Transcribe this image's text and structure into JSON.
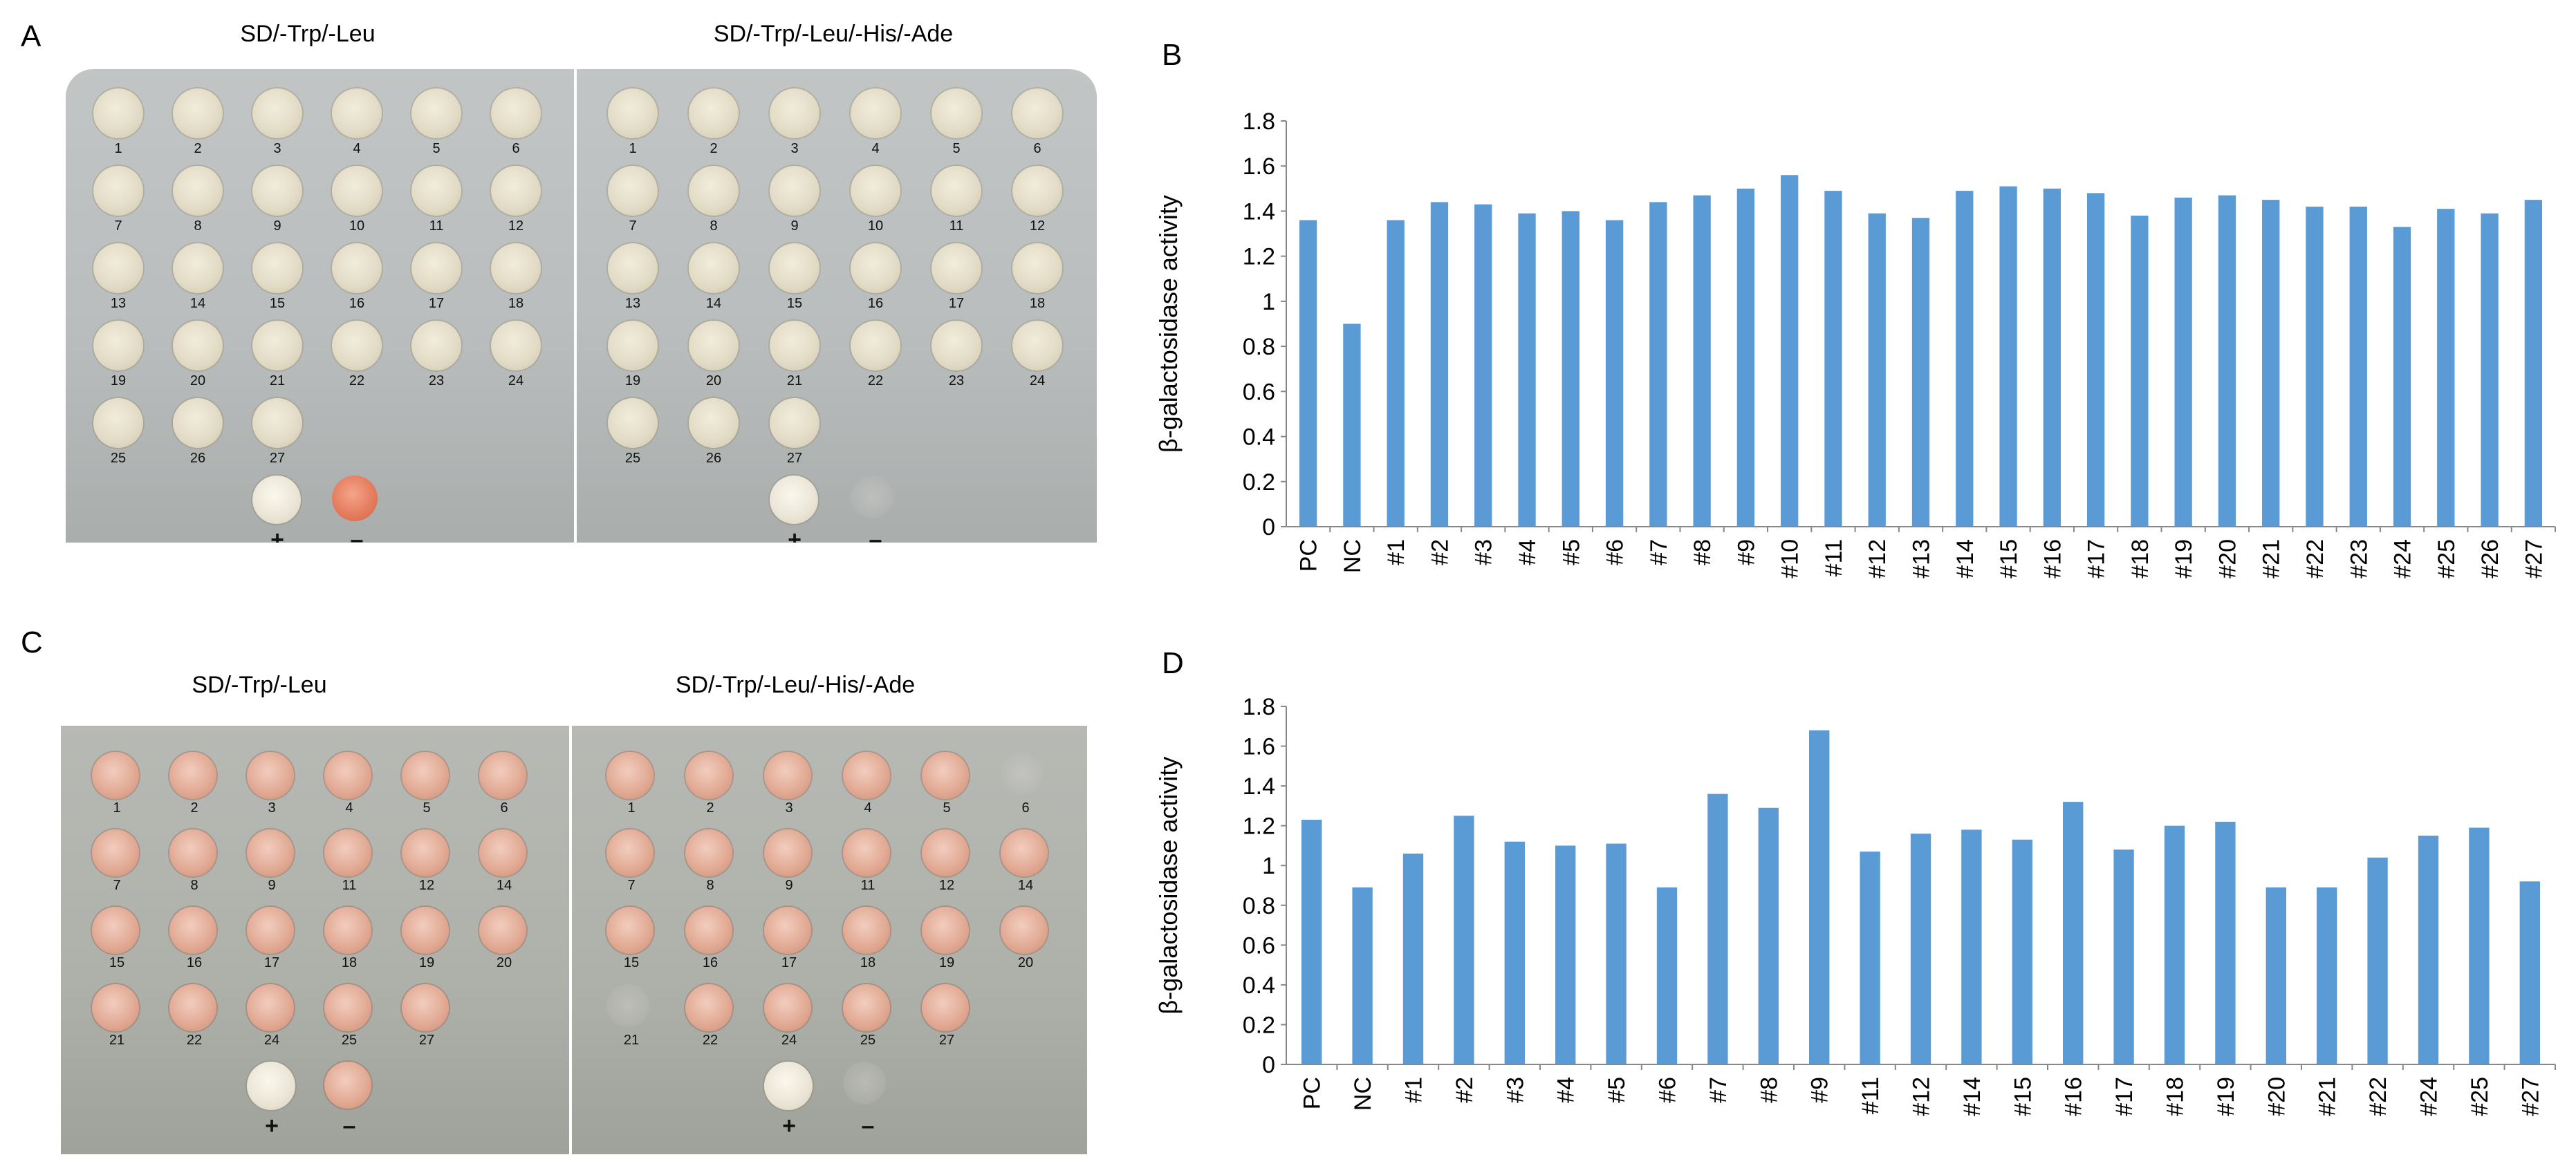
{
  "panels": {
    "A": {
      "letter": "A",
      "left_title": "SD/-Trp/-Leu",
      "right_title": "SD/-Trp/-Leu/-His/-Ade",
      "rows": [
        [
          "1",
          "2",
          "3",
          "4",
          "5",
          "6"
        ],
        [
          "7",
          "8",
          "9",
          "10",
          "11",
          "12"
        ],
        [
          "13",
          "14",
          "15",
          "16",
          "17",
          "18"
        ],
        [
          "19",
          "20",
          "21",
          "22",
          "23",
          "24"
        ],
        [
          "25",
          "26",
          "27"
        ]
      ],
      "pos_label": "+",
      "neg_label": "–"
    },
    "C": {
      "letter": "C",
      "left_title": "SD/-Trp/-Leu",
      "right_title": "SD/-Trp/-Leu/-His/-Ade",
      "rows": [
        [
          "1",
          "2",
          "3",
          "4",
          "5",
          "6"
        ],
        [
          "7",
          "8",
          "9",
          "11",
          "12",
          "14"
        ],
        [
          "15",
          "16",
          "17",
          "18",
          "19",
          "20"
        ],
        [
          "21",
          "22",
          "24",
          "25",
          "27"
        ]
      ],
      "pos_label": "+",
      "neg_label": "–"
    }
  },
  "colors": {
    "bar": "#5b9bd5",
    "axis": "#888888"
  },
  "chart_data": [
    {
      "id": "B",
      "type": "bar",
      "panel_letter": "B",
      "title": "",
      "xlabel": "",
      "ylabel": "β-galactosidase activity",
      "ylim": [
        0,
        1.8
      ],
      "yticks": [
        0,
        0.2,
        0.4,
        0.6,
        0.8,
        1,
        1.2,
        1.4,
        1.6,
        1.8
      ],
      "ytick_labels": [
        "0",
        "0.2",
        "0.4",
        "0.6",
        "0.8",
        "1",
        "1.2",
        "1.4",
        "1.6",
        "1.8"
      ],
      "categories": [
        "PC",
        "NC",
        "#1",
        "#2",
        "#3",
        "#4",
        "#5",
        "#6",
        "#7",
        "#8",
        "#9",
        "#10",
        "#11",
        "#12",
        "#13",
        "#14",
        "#15",
        "#16",
        "#17",
        "#18",
        "#19",
        "#20",
        "#21",
        "#22",
        "#23",
        "#24",
        "#25",
        "#26",
        "#27"
      ],
      "values": [
        1.36,
        0.9,
        1.36,
        1.44,
        1.43,
        1.39,
        1.4,
        1.36,
        1.44,
        1.47,
        1.5,
        1.56,
        1.49,
        1.39,
        1.37,
        1.49,
        1.51,
        1.5,
        1.48,
        1.38,
        1.46,
        1.47,
        1.45,
        1.42,
        1.42,
        1.33,
        1.41,
        1.39,
        1.45
      ]
    },
    {
      "id": "D",
      "type": "bar",
      "panel_letter": "D",
      "title": "",
      "xlabel": "",
      "ylabel": "β-galactosidase activity",
      "ylim": [
        0,
        1.8
      ],
      "yticks": [
        0,
        0.2,
        0.4,
        0.6,
        0.8,
        1,
        1.2,
        1.4,
        1.6,
        1.8
      ],
      "ytick_labels": [
        "0",
        "0.2",
        "0.4",
        "0.6",
        "0.8",
        "1",
        "1.2",
        "1.4",
        "1.6",
        "1.8"
      ],
      "categories": [
        "PC",
        "NC",
        "#1",
        "#2",
        "#3",
        "#4",
        "#5",
        "#6",
        "#7",
        "#8",
        "#9",
        "#11",
        "#12",
        "#14",
        "#15",
        "#16",
        "#17",
        "#18",
        "#19",
        "#20",
        "#21",
        "#22",
        "#24",
        "#25",
        "#27"
      ],
      "values": [
        1.23,
        0.89,
        1.06,
        1.25,
        1.12,
        1.1,
        1.11,
        0.89,
        1.36,
        1.29,
        1.68,
        1.07,
        1.16,
        1.18,
        1.13,
        1.32,
        1.08,
        1.2,
        1.22,
        0.89,
        0.89,
        1.04,
        1.15,
        1.19,
        0.92
      ]
    }
  ]
}
